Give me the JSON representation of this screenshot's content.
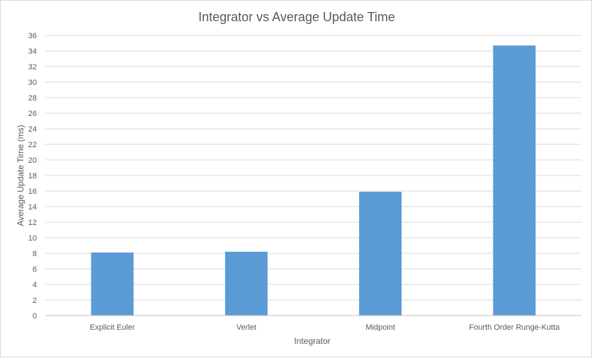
{
  "chart_data": {
    "type": "bar",
    "title": "Integrator vs Average Update Time",
    "xlabel": "Integrator",
    "ylabel": "Average Update Time (ms)",
    "categories": [
      "Explicit Euler",
      "Verlet",
      "Midpoint",
      "Fourth Order Runge-Kutta"
    ],
    "values": [
      8.1,
      8.2,
      15.9,
      34.7
    ],
    "ylim": [
      0,
      36
    ],
    "yticks": [
      0,
      2,
      4,
      6,
      8,
      10,
      12,
      14,
      16,
      18,
      20,
      22,
      24,
      26,
      28,
      30,
      32,
      34,
      36
    ],
    "grid": true,
    "bar_color": "#5b9bd5"
  }
}
